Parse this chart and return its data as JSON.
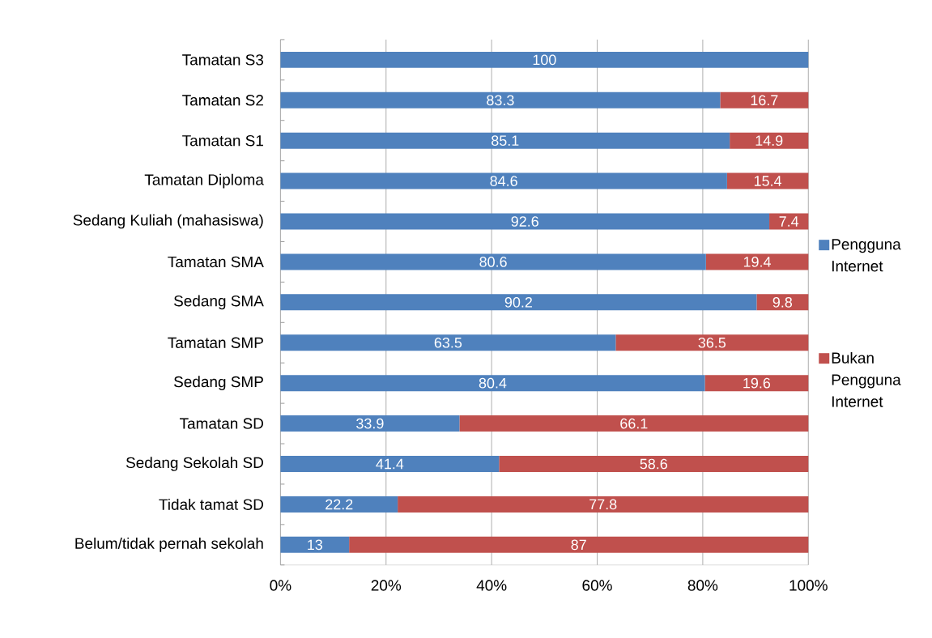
{
  "chart_data": {
    "type": "bar",
    "orientation": "horizontal",
    "stacked": true,
    "categories": [
      "Tamatan S3",
      "Tamatan S2",
      "Tamatan S1",
      "Tamatan Diploma",
      "Sedang Kuliah (mahasiswa)",
      "Tamatan SMA",
      "Sedang SMA",
      "Tamatan SMP",
      "Sedang SMP",
      "Tamatan SD",
      "Sedang Sekolah SD",
      "Tidak tamat SD",
      "Belum/tidak pernah sekolah"
    ],
    "series": [
      {
        "name": "Pengguna Internet",
        "color": "#4f81bd",
        "values": [
          100,
          83.3,
          85.1,
          84.6,
          92.6,
          80.6,
          90.2,
          63.5,
          80.4,
          33.9,
          41.4,
          22.2,
          13
        ]
      },
      {
        "name": "Bukan Pengguna Internet",
        "color": "#c0504d",
        "values": [
          null,
          16.7,
          14.9,
          15.4,
          7.4,
          19.4,
          9.8,
          36.5,
          19.6,
          66.1,
          58.6,
          77.8,
          87
        ]
      }
    ],
    "xlim": [
      0,
      100
    ],
    "xticks": [
      {
        "value": 0,
        "label": "0%"
      },
      {
        "value": 20,
        "label": "20%"
      },
      {
        "value": 40,
        "label": "40%"
      },
      {
        "value": 60,
        "label": "60%"
      },
      {
        "value": 80,
        "label": "80%"
      },
      {
        "value": 100,
        "label": "100%"
      }
    ],
    "grid": "x",
    "legend": "right",
    "data_labels": true
  }
}
